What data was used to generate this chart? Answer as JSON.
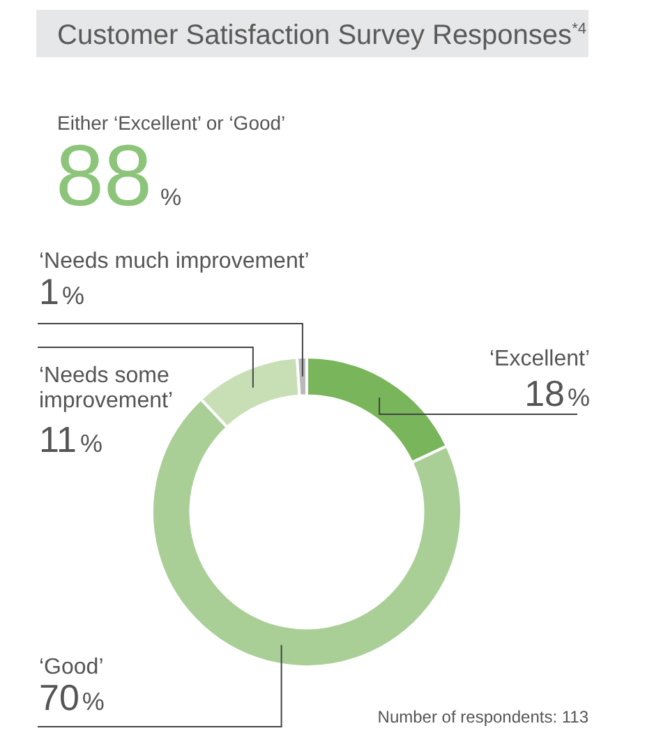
{
  "chart_data": {
    "type": "donut",
    "title": "Customer Satisfaction Survey Responses$^{*4}$",
    "subtitle": "Either ‘Excellent’ or ‘Good’",
    "categories": [
      "‘Excellent’",
      "‘Good’",
      "‘Needs some improvement’",
      "‘Needs much improvement’"
    ],
    "values": [
      18,
      70,
      11,
      1
    ],
    "colors": [
      "#78b55b",
      "#a9cf97",
      "#c8dfb6",
      "#b8b9bb"
    ],
    "value_labels": [
      "18%",
      "70%",
      "11%",
      "1%"
    ],
    "annotations": [
      "88%",
      "Number of respondents: 113"
    ],
    "legend": false
  }
}
